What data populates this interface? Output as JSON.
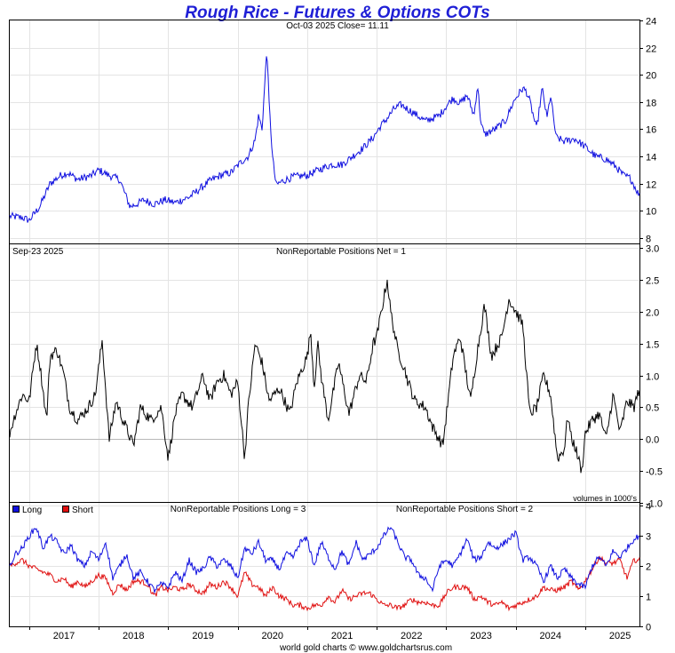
{
  "header": {
    "title": "Rough Rice - Futures & Options COTs",
    "price_caption": "Oct-03  2025   Close= 11.11",
    "net_date": "Sep-23  2025",
    "net_caption": "NonReportable Positions Net = 1",
    "volumes_note": "volumes in 1000's",
    "long_caption": "NonReportable Positions Long = 3",
    "short_caption": "NonReportable Positions Short = 2",
    "footer": "world gold charts © www.goldchartsrus.com"
  },
  "colors": {
    "price": "#1010e0",
    "net": "#000000",
    "long": "#1010e0",
    "short": "#e01010",
    "title": "#1f1fd6"
  },
  "legend": [
    {
      "label": "Long",
      "color": "#1010e0"
    },
    {
      "label": "Short",
      "color": "#e01010"
    }
  ],
  "chart_data": [
    {
      "type": "line",
      "title": "Rough Rice - Futures & Options COTs",
      "subtitle": "Oct-03  2025   Close= 11.11",
      "x_range": [
        2016.72,
        2025.78
      ],
      "x_ticks": [
        "2017",
        "2018",
        "2019",
        "2020",
        "2021",
        "2022",
        "2023",
        "2024",
        "2025"
      ],
      "y_ticks": [
        "8",
        "10",
        "12",
        "14",
        "16",
        "18",
        "20",
        "22",
        "24"
      ],
      "ylim": [
        7.6,
        24
      ],
      "series": [
        {
          "name": "Close",
          "x": [
            2016.72,
            2016.9,
            2017.0,
            2017.15,
            2017.3,
            2017.45,
            2017.55,
            2017.7,
            2017.9,
            2018.0,
            2018.15,
            2018.3,
            2018.45,
            2018.55,
            2018.65,
            2018.8,
            2018.95,
            2019.1,
            2019.3,
            2019.5,
            2019.6,
            2019.75,
            2019.9,
            2020.05,
            2020.15,
            2020.25,
            2020.3,
            2020.35,
            2020.42,
            2020.45,
            2020.5,
            2020.55,
            2020.65,
            2020.8,
            2021.0,
            2021.2,
            2021.35,
            2021.5,
            2021.65,
            2021.8,
            2021.95,
            2022.05,
            2022.15,
            2022.25,
            2022.35,
            2022.5,
            2022.7,
            2022.9,
            2023.0,
            2023.1,
            2023.2,
            2023.3,
            2023.4,
            2023.45,
            2023.5,
            2023.55,
            2023.7,
            2023.85,
            2023.95,
            2024.0,
            2024.1,
            2024.15,
            2024.2,
            2024.3,
            2024.38,
            2024.45,
            2024.5,
            2024.58,
            2024.7,
            2024.85,
            2025.0,
            2025.15,
            2025.3,
            2025.45,
            2025.55,
            2025.65,
            2025.78
          ],
          "values": [
            9.6,
            9.5,
            9.3,
            10.3,
            12.0,
            12.6,
            12.8,
            12.3,
            12.6,
            13.0,
            12.6,
            12.3,
            10.3,
            10.5,
            10.8,
            10.5,
            10.8,
            10.6,
            11.0,
            11.8,
            12.2,
            12.6,
            12.8,
            13.6,
            14.0,
            15.2,
            17.0,
            16.0,
            22.0,
            18.0,
            14.0,
            11.9,
            12.2,
            12.5,
            12.6,
            13.1,
            13.4,
            13.4,
            14.0,
            14.6,
            15.4,
            16.2,
            16.8,
            17.5,
            17.8,
            17.3,
            16.6,
            17.0,
            17.7,
            18.3,
            17.9,
            18.5,
            17.0,
            19.3,
            16.4,
            15.6,
            16.0,
            16.6,
            17.8,
            18.3,
            19.0,
            18.8,
            18.1,
            16.0,
            19.0,
            16.8,
            18.5,
            15.4,
            15.1,
            15.3,
            14.7,
            14.0,
            13.8,
            13.2,
            12.6,
            12.4,
            11.1
          ]
        }
      ]
    },
    {
      "type": "line",
      "title": "NonReportable Positions Net = 1",
      "subtitle": "Sep-23  2025",
      "x_range": [
        2016.72,
        2025.78
      ],
      "y_ticks": [
        "-1.0",
        "-0.5",
        "0.0",
        "0.5",
        "1.0",
        "1.5",
        "2.0",
        "2.5",
        "3.0"
      ],
      "ylim": [
        -0.98,
        3.05
      ],
      "series": [
        {
          "name": "Net",
          "x": [
            2016.72,
            2016.8,
            2016.9,
            2017.0,
            2017.1,
            2017.15,
            2017.25,
            2017.3,
            2017.4,
            2017.5,
            2017.58,
            2017.7,
            2017.85,
            2017.95,
            2018.05,
            2018.15,
            2018.25,
            2018.35,
            2018.5,
            2018.6,
            2018.75,
            2018.9,
            2019.0,
            2019.1,
            2019.2,
            2019.35,
            2019.5,
            2019.6,
            2019.7,
            2019.8,
            2019.9,
            2020.0,
            2020.1,
            2020.15,
            2020.25,
            2020.35,
            2020.45,
            2020.6,
            2020.75,
            2020.85,
            2021.0,
            2021.05,
            2021.1,
            2021.15,
            2021.2,
            2021.3,
            2021.45,
            2021.6,
            2021.75,
            2021.85,
            2021.95,
            2022.0,
            2022.1,
            2022.15,
            2022.2,
            2022.3,
            2022.4,
            2022.45,
            2022.55,
            2022.7,
            2022.8,
            2022.95,
            2023.1,
            2023.2,
            2023.35,
            2023.45,
            2023.55,
            2023.65,
            2023.8,
            2023.9,
            2024.0,
            2024.05,
            2024.1,
            2024.2,
            2024.3,
            2024.4,
            2024.5,
            2024.6,
            2024.7,
            2024.75,
            2024.8,
            2024.85,
            2024.95,
            2025.0,
            2025.1,
            2025.2,
            2025.3,
            2025.4,
            2025.5,
            2025.6,
            2025.7,
            2025.78
          ],
          "values": [
            0.1,
            0.4,
            0.7,
            0.6,
            1.5,
            1.2,
            0.3,
            1.3,
            1.4,
            1.0,
            0.5,
            0.3,
            0.5,
            0.7,
            1.55,
            0.0,
            0.6,
            0.3,
            -0.1,
            0.5,
            0.3,
            0.5,
            -0.3,
            0.4,
            0.7,
            0.5,
            1.0,
            0.6,
            0.9,
            1.0,
            0.7,
            0.9,
            -0.3,
            0.5,
            1.5,
            1.2,
            0.6,
            0.8,
            0.4,
            0.9,
            1.3,
            1.7,
            0.8,
            1.5,
            1.0,
            0.3,
            1.2,
            0.4,
            1.0,
            0.9,
            1.5,
            1.6,
            2.2,
            2.5,
            2.0,
            1.4,
            1.1,
            0.9,
            0.6,
            0.5,
            0.2,
            -0.1,
            1.3,
            1.6,
            0.6,
            1.4,
            2.1,
            1.3,
            1.6,
            2.2,
            2.0,
            1.9,
            1.8,
            0.4,
            0.5,
            1.0,
            0.7,
            -0.3,
            -0.15,
            0.4,
            0.0,
            -0.1,
            -0.5,
            0.1,
            0.3,
            0.4,
            0.0,
            0.7,
            0.1,
            0.6,
            0.5,
            0.8
          ]
        }
      ]
    },
    {
      "type": "line",
      "title": "NonReportable Positions Long = 3 / NonReportable Positions Short = 2",
      "x_range": [
        2016.72,
        2025.78
      ],
      "y_ticks": [
        "0",
        "1",
        "2",
        "3",
        "4"
      ],
      "ylim": [
        0,
        4.1
      ],
      "series": [
        {
          "name": "Long",
          "x": [
            2016.72,
            2016.8,
            2016.9,
            2017.0,
            2017.1,
            2017.2,
            2017.3,
            2017.4,
            2017.5,
            2017.6,
            2017.7,
            2017.8,
            2017.9,
            2018.0,
            2018.1,
            2018.2,
            2018.3,
            2018.4,
            2018.5,
            2018.6,
            2018.7,
            2018.8,
            2018.9,
            2019.0,
            2019.1,
            2019.2,
            2019.3,
            2019.4,
            2019.5,
            2019.6,
            2019.7,
            2019.8,
            2019.9,
            2020.0,
            2020.1,
            2020.2,
            2020.3,
            2020.4,
            2020.5,
            2020.6,
            2020.7,
            2020.8,
            2020.9,
            2021.0,
            2021.1,
            2021.2,
            2021.3,
            2021.4,
            2021.5,
            2021.6,
            2021.7,
            2021.8,
            2021.9,
            2022.0,
            2022.1,
            2022.2,
            2022.3,
            2022.4,
            2022.5,
            2022.6,
            2022.7,
            2022.8,
            2022.9,
            2023.0,
            2023.1,
            2023.2,
            2023.3,
            2023.4,
            2023.5,
            2023.6,
            2023.7,
            2023.8,
            2023.9,
            2024.0,
            2024.1,
            2024.2,
            2024.3,
            2024.4,
            2024.5,
            2024.6,
            2024.7,
            2024.8,
            2024.9,
            2025.0,
            2025.1,
            2025.2,
            2025.3,
            2025.4,
            2025.5,
            2025.6,
            2025.7,
            2025.78
          ],
          "values": [
            2.0,
            2.4,
            2.6,
            3.0,
            3.3,
            2.6,
            3.0,
            2.8,
            2.4,
            2.7,
            2.2,
            2.0,
            2.5,
            2.2,
            2.8,
            1.6,
            2.0,
            2.4,
            1.6,
            1.8,
            1.5,
            1.2,
            1.4,
            1.3,
            1.8,
            1.5,
            2.2,
            1.8,
            1.9,
            2.3,
            2.0,
            2.2,
            2.0,
            1.6,
            2.6,
            2.4,
            2.8,
            2.2,
            2.2,
            1.9,
            2.4,
            2.3,
            2.8,
            2.9,
            2.0,
            2.8,
            2.3,
            1.9,
            2.5,
            2.0,
            2.8,
            2.2,
            2.4,
            2.6,
            3.0,
            3.3,
            2.8,
            2.3,
            2.2,
            1.7,
            1.6,
            1.2,
            2.0,
            2.2,
            2.0,
            2.4,
            2.9,
            2.2,
            2.3,
            2.8,
            2.6,
            2.7,
            2.9,
            3.1,
            2.2,
            2.3,
            2.0,
            1.5,
            2.0,
            1.6,
            1.9,
            1.6,
            1.4,
            1.3,
            2.0,
            2.3,
            2.0,
            2.5,
            2.3,
            2.6,
            2.9,
            3.0
          ]
        },
        {
          "name": "Short",
          "x": [
            2016.72,
            2016.8,
            2016.9,
            2017.0,
            2017.1,
            2017.2,
            2017.3,
            2017.4,
            2017.5,
            2017.6,
            2017.7,
            2017.8,
            2017.9,
            2018.0,
            2018.1,
            2018.2,
            2018.3,
            2018.4,
            2018.5,
            2018.6,
            2018.7,
            2018.8,
            2018.9,
            2019.0,
            2019.1,
            2019.2,
            2019.3,
            2019.4,
            2019.5,
            2019.6,
            2019.7,
            2019.8,
            2019.9,
            2020.0,
            2020.1,
            2020.2,
            2020.3,
            2020.4,
            2020.5,
            2020.6,
            2020.7,
            2020.8,
            2020.9,
            2021.0,
            2021.1,
            2021.2,
            2021.3,
            2021.4,
            2021.5,
            2021.6,
            2021.7,
            2021.8,
            2021.9,
            2022.0,
            2022.1,
            2022.2,
            2022.3,
            2022.4,
            2022.5,
            2022.6,
            2022.7,
            2022.8,
            2022.9,
            2023.0,
            2023.1,
            2023.2,
            2023.3,
            2023.4,
            2023.5,
            2023.6,
            2023.7,
            2023.8,
            2023.9,
            2024.0,
            2024.1,
            2024.2,
            2024.3,
            2024.4,
            2024.5,
            2024.6,
            2024.7,
            2024.8,
            2024.9,
            2025.0,
            2025.1,
            2025.2,
            2025.3,
            2025.4,
            2025.5,
            2025.6,
            2025.7,
            2025.78
          ],
          "values": [
            2.0,
            2.1,
            2.2,
            2.0,
            1.9,
            1.8,
            1.7,
            1.5,
            1.6,
            1.3,
            1.5,
            1.3,
            1.5,
            1.7,
            1.6,
            1.1,
            1.4,
            1.2,
            1.5,
            1.5,
            1.4,
            1.0,
            1.3,
            1.2,
            1.3,
            1.2,
            1.4,
            1.2,
            1.1,
            1.4,
            1.3,
            1.5,
            1.3,
            1.0,
            1.8,
            1.4,
            1.3,
            1.0,
            1.3,
            1.0,
            0.9,
            0.7,
            0.7,
            0.6,
            0.7,
            0.7,
            1.0,
            0.8,
            1.2,
            0.9,
            1.0,
            1.1,
            1.1,
            0.9,
            0.7,
            0.7,
            0.6,
            0.7,
            0.9,
            0.8,
            0.8,
            0.7,
            0.7,
            1.1,
            1.3,
            1.3,
            1.3,
            0.9,
            1.0,
            0.8,
            0.7,
            0.8,
            0.6,
            0.7,
            0.8,
            0.9,
            1.0,
            1.3,
            1.2,
            1.2,
            1.3,
            1.5,
            1.2,
            1.5,
            1.9,
            2.3,
            2.1,
            2.1,
            2.2,
            1.6,
            2.2,
            2.2
          ]
        }
      ]
    }
  ]
}
